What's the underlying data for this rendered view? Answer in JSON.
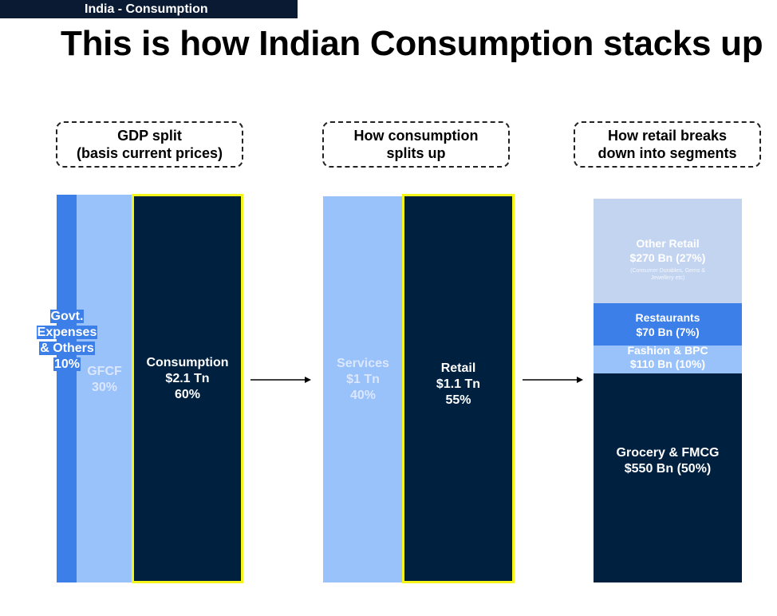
{
  "header": {
    "section": "India - Consumption"
  },
  "title": "This is how Indian Consumption stacks up",
  "boxes": {
    "gdp_line1": "GDP split",
    "gdp_line2": "(basis current prices)",
    "consumption_line1": "How consumption",
    "consumption_line2": "splits up",
    "retail_line1": "How retail breaks",
    "retail_line2": "down into segments"
  },
  "colors": {
    "navy": "#00203f",
    "light_blue": "#99c1fa",
    "mid_blue": "#3d7fe8",
    "pale_blue": "#c3d4f0",
    "highlight": "#f5f51a"
  },
  "chart_data": [
    {
      "type": "bar",
      "title": "GDP split (basis current prices)",
      "segments": [
        {
          "name": "Govt. Expenses & Others",
          "value_label": "",
          "share": 10
        },
        {
          "name": "GFCF",
          "value_label": "",
          "share": 30
        },
        {
          "name": "Consumption",
          "value_label": "$2.1 Tn",
          "share": 60,
          "highlighted": true
        }
      ]
    },
    {
      "type": "bar",
      "title": "How consumption splits up",
      "segments": [
        {
          "name": "Services",
          "value_label": "$1 Tn",
          "share": 40
        },
        {
          "name": "Retail",
          "value_label": "$1.1 Tn",
          "share": 55,
          "highlighted": true
        }
      ]
    },
    {
      "type": "bar",
      "title": "How retail breaks down into segments",
      "segments": [
        {
          "name": "Other Retail",
          "value_label": "$270 Bn (27%)",
          "share": 27,
          "note": "(Consumer Durables, Gems & Jewellery etc)"
        },
        {
          "name": "Restaurants",
          "value_label": "$70 Bn (7%)",
          "share": 7
        },
        {
          "name": "Fashion & BPC",
          "value_label": "$110 Bn (10%)",
          "share": 10
        },
        {
          "name": "Grocery & FMCG",
          "value_label": "$550 Bn (50%)",
          "share": 50
        }
      ]
    }
  ],
  "labels": {
    "govt_1": "Govt.",
    "govt_2": "Expenses",
    "govt_3": "& Others",
    "govt_4": "10%",
    "gfcf_1": "GFCF",
    "gfcf_2": "30%",
    "consumption_1": "Consumption",
    "consumption_2": "$2.1 Tn",
    "consumption_3": "60%",
    "services_1": "Services",
    "services_2": "$1 Tn",
    "services_3": "40%",
    "retail_1": "Retail",
    "retail_2": "$1.1 Tn",
    "retail_3": "55%",
    "other_1": "Other Retail",
    "other_2": "$270 Bn (27%)",
    "other_3": "(Consumer Durables, Gems &",
    "other_4": "Jewellery etc)",
    "rest_1": "Restaurants",
    "rest_2": "$70 Bn (7%)",
    "fashion_1": "Fashion & BPC",
    "fashion_2": "$110 Bn (10%)",
    "grocery_1": "Grocery & FMCG",
    "grocery_2": "$550 Bn (50%)"
  }
}
